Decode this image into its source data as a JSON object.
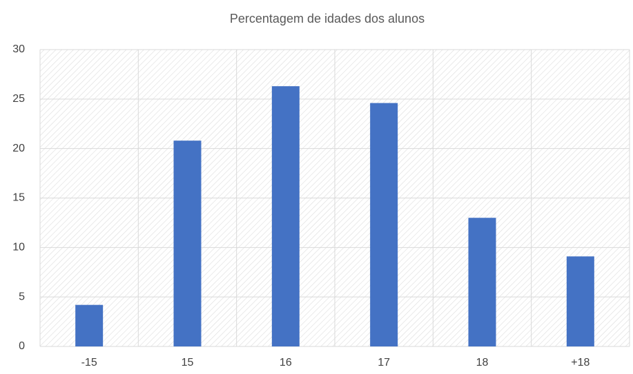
{
  "chart_data": {
    "type": "bar",
    "title": "Percentagem de idades dos alunos",
    "categories": [
      "-15",
      "15",
      "16",
      "17",
      "18",
      "+18"
    ],
    "values": [
      4.2,
      20.8,
      26.3,
      24.6,
      13.0,
      9.1
    ],
    "color": "#4472c4",
    "ylim": [
      0,
      30
    ],
    "yticks": [
      0,
      5,
      10,
      15,
      20,
      25,
      30
    ],
    "grid": true
  }
}
